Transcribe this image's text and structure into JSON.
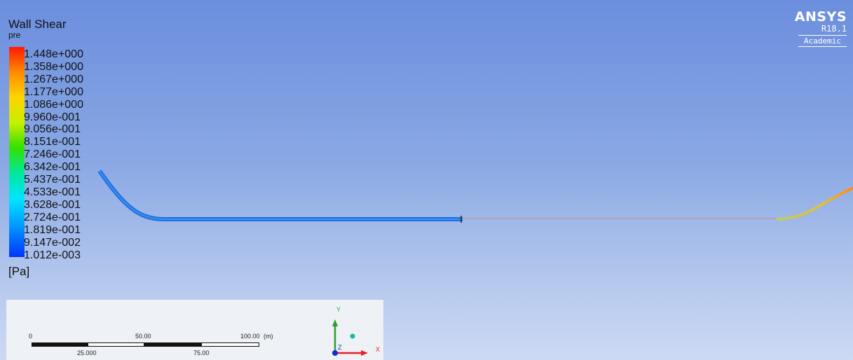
{
  "legend": {
    "title": "Wall Shear",
    "subtitle": "pre",
    "unit": "[Pa]",
    "ticks": [
      "1.448e+000",
      "1.358e+000",
      "1.267e+000",
      "1.177e+000",
      "1.086e+000",
      "9.960e-001",
      "9.056e-001",
      "8.151e-001",
      "7.246e-001",
      "6.342e-001",
      "5.437e-001",
      "4.533e-001",
      "3.628e-001",
      "2.724e-001",
      "1.819e-001",
      "9.147e-002",
      "1.012e-003"
    ]
  },
  "logo": {
    "brand": "ANSYS",
    "version": "R18.1",
    "edition": "Academic"
  },
  "scale": {
    "top_labels": [
      "0",
      "50.00",
      "100.00"
    ],
    "unit": "(m)",
    "bottom_labels": [
      "25.000",
      "75.00"
    ]
  },
  "axes": {
    "x": "X",
    "y": "Y",
    "z": "Z"
  },
  "colors": {
    "x_axis": "#e8202a",
    "y_axis": "#2aa02a",
    "z_axis": "#1a2ad0",
    "pipe_low": "#1e6fe0"
  }
}
